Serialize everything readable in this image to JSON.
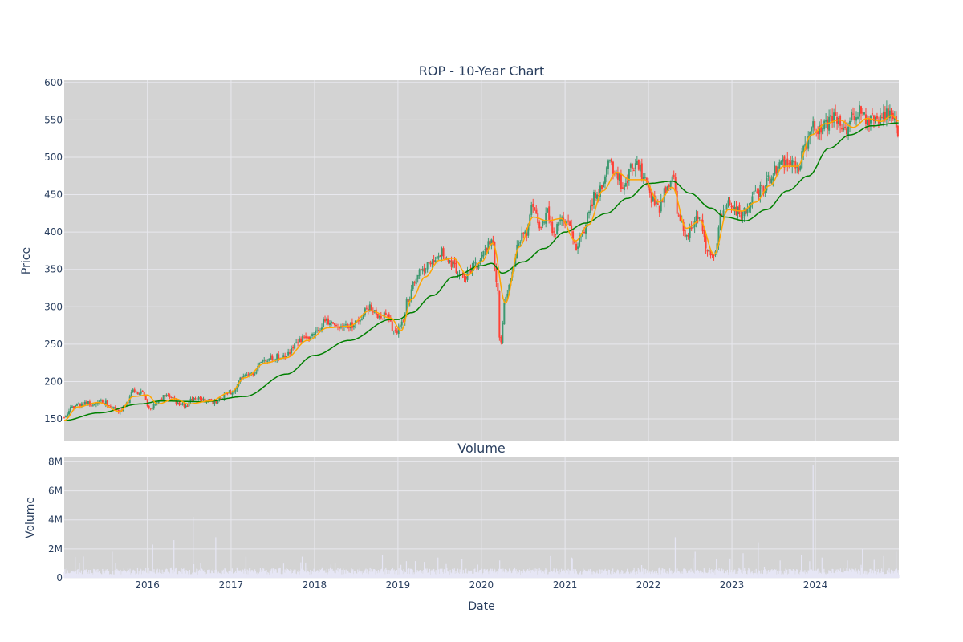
{
  "colors": {
    "plot_background": "#d3d3d3",
    "grid": "#e8e8ee",
    "text": "#2a3f5f",
    "candle_up": "#3d9970",
    "candle_down": "#ff4136",
    "sma_short": "#ffa500",
    "sma_long": "#008000",
    "volume_bar": "#e6e6f5"
  },
  "chart_data": [
    {
      "type": "candlestick",
      "title": "ROP - 10-Year Chart",
      "xlabel": "",
      "ylabel": "Price",
      "ylim": [
        120,
        603
      ],
      "yticks": [
        150,
        200,
        250,
        300,
        350,
        400,
        450,
        500,
        550,
        600
      ],
      "xlim": [
        "2015-01-02",
        "2024-12-31"
      ],
      "xticks": [
        "2016-01-01",
        "2017-01-01",
        "2018-01-01",
        "2019-01-01",
        "2020-01-01",
        "2021-01-01",
        "2022-01-01",
        "2023-01-01",
        "2024-01-01"
      ],
      "grid": true,
      "legend": "none",
      "close_path": [
        [
          "2015-01-02",
          152
        ],
        [
          "2015-02-01",
          165
        ],
        [
          "2015-03-01",
          168
        ],
        [
          "2015-04-01",
          172
        ],
        [
          "2015-05-01",
          170
        ],
        [
          "2015-06-01",
          174
        ],
        [
          "2015-07-01",
          172
        ],
        [
          "2015-08-01",
          165
        ],
        [
          "2015-09-01",
          158
        ],
        [
          "2015-10-01",
          170
        ],
        [
          "2015-11-01",
          188
        ],
        [
          "2015-12-01",
          185
        ],
        [
          "2016-01-15",
          165
        ],
        [
          "2016-02-15",
          172
        ],
        [
          "2016-03-15",
          180
        ],
        [
          "2016-04-15",
          178
        ],
        [
          "2016-05-15",
          170
        ],
        [
          "2016-06-15",
          168
        ],
        [
          "2016-07-15",
          175
        ],
        [
          "2016-08-15",
          178
        ],
        [
          "2016-09-15",
          175
        ],
        [
          "2016-10-15",
          172
        ],
        [
          "2016-11-15",
          178
        ],
        [
          "2016-12-15",
          183
        ],
        [
          "2017-01-15",
          188
        ],
        [
          "2017-02-15",
          205
        ],
        [
          "2017-03-15",
          210
        ],
        [
          "2017-04-15",
          212
        ],
        [
          "2017-05-15",
          225
        ],
        [
          "2017-06-15",
          232
        ],
        [
          "2017-07-15",
          233
        ],
        [
          "2017-08-15",
          232
        ],
        [
          "2017-09-15",
          240
        ],
        [
          "2017-10-15",
          252
        ],
        [
          "2017-11-15",
          258
        ],
        [
          "2017-12-15",
          260
        ],
        [
          "2018-01-15",
          268
        ],
        [
          "2018-02-15",
          280
        ],
        [
          "2018-03-15",
          278
        ],
        [
          "2018-04-15",
          273
        ],
        [
          "2018-05-15",
          272
        ],
        [
          "2018-06-15",
          276
        ],
        [
          "2018-07-15",
          280
        ],
        [
          "2018-08-15",
          300
        ],
        [
          "2018-09-15",
          298
        ],
        [
          "2018-10-15",
          285
        ],
        [
          "2018-11-15",
          290
        ],
        [
          "2018-12-15",
          265
        ],
        [
          "2019-01-15",
          275
        ],
        [
          "2019-02-15",
          310
        ],
        [
          "2019-03-15",
          335
        ],
        [
          "2019-04-15",
          350
        ],
        [
          "2019-05-15",
          355
        ],
        [
          "2019-06-15",
          368
        ],
        [
          "2019-07-15",
          372
        ],
        [
          "2019-08-15",
          360
        ],
        [
          "2019-09-15",
          350
        ],
        [
          "2019-10-15",
          338
        ],
        [
          "2019-11-15",
          350
        ],
        [
          "2019-12-15",
          355
        ],
        [
          "2020-01-15",
          375
        ],
        [
          "2020-02-15",
          390
        ],
        [
          "2020-03-10",
          330
        ],
        [
          "2020-03-23",
          250
        ],
        [
          "2020-04-15",
          310
        ],
        [
          "2020-05-15",
          345
        ],
        [
          "2020-06-15",
          390
        ],
        [
          "2020-07-15",
          400
        ],
        [
          "2020-08-15",
          440
        ],
        [
          "2020-09-15",
          405
        ],
        [
          "2020-10-15",
          425
        ],
        [
          "2020-11-15",
          400
        ],
        [
          "2020-12-15",
          420
        ],
        [
          "2021-01-15",
          410
        ],
        [
          "2021-02-15",
          380
        ],
        [
          "2021-03-15",
          395
        ],
        [
          "2021-04-15",
          430
        ],
        [
          "2021-05-15",
          450
        ],
        [
          "2021-06-15",
          465
        ],
        [
          "2021-07-15",
          490
        ],
        [
          "2021-08-15",
          475
        ],
        [
          "2021-09-15",
          460
        ],
        [
          "2021-10-15",
          485
        ],
        [
          "2021-11-15",
          490
        ],
        [
          "2021-12-15",
          470
        ],
        [
          "2022-01-15",
          445
        ],
        [
          "2022-02-15",
          430
        ],
        [
          "2022-03-15",
          455
        ],
        [
          "2022-04-15",
          475
        ],
        [
          "2022-05-15",
          420
        ],
        [
          "2022-06-15",
          390
        ],
        [
          "2022-07-15",
          410
        ],
        [
          "2022-08-15",
          420
        ],
        [
          "2022-09-15",
          370
        ],
        [
          "2022-10-15",
          368
        ],
        [
          "2022-11-15",
          420
        ],
        [
          "2022-12-15",
          440
        ],
        [
          "2023-01-15",
          430
        ],
        [
          "2023-02-15",
          425
        ],
        [
          "2023-03-15",
          430
        ],
        [
          "2023-04-15",
          450
        ],
        [
          "2023-05-15",
          458
        ],
        [
          "2023-06-15",
          470
        ],
        [
          "2023-07-15",
          485
        ],
        [
          "2023-08-15",
          495
        ],
        [
          "2023-09-15",
          490
        ],
        [
          "2023-10-15",
          485
        ],
        [
          "2023-11-15",
          510
        ],
        [
          "2023-12-15",
          540
        ],
        [
          "2024-01-15",
          540
        ],
        [
          "2024-02-15",
          545
        ],
        [
          "2024-03-15",
          555
        ],
        [
          "2024-04-15",
          550
        ],
        [
          "2024-05-15",
          530
        ],
        [
          "2024-06-15",
          555
        ],
        [
          "2024-07-15",
          560
        ],
        [
          "2024-08-15",
          545
        ],
        [
          "2024-09-15",
          555
        ],
        [
          "2024-10-15",
          550
        ],
        [
          "2024-11-15",
          560
        ],
        [
          "2024-12-10",
          550
        ],
        [
          "2024-12-31",
          522
        ]
      ],
      "series": [
        {
          "kind": "sma_short",
          "values": [
            [
              "2015-01-02",
              148
            ],
            [
              "2015-03-01",
              166
            ],
            [
              "2015-06-01",
              172
            ],
            [
              "2015-09-01",
              160
            ],
            [
              "2015-11-01",
              180
            ],
            [
              "2016-01-01",
              182
            ],
            [
              "2016-02-15",
              170
            ],
            [
              "2016-05-01",
              177
            ],
            [
              "2016-07-01",
              170
            ],
            [
              "2016-10-01",
              174
            ],
            [
              "2017-01-01",
              186
            ],
            [
              "2017-03-01",
              205
            ],
            [
              "2017-06-01",
              225
            ],
            [
              "2017-09-01",
              232
            ],
            [
              "2017-12-01",
              255
            ],
            [
              "2018-03-01",
              272
            ],
            [
              "2018-06-01",
              274
            ],
            [
              "2018-09-01",
              295
            ],
            [
              "2018-12-01",
              285
            ],
            [
              "2019-01-15",
              268
            ],
            [
              "2019-03-01",
              310
            ],
            [
              "2019-05-01",
              340
            ],
            [
              "2019-07-01",
              362
            ],
            [
              "2019-09-01",
              365
            ],
            [
              "2019-11-01",
              342
            ],
            [
              "2020-01-01",
              360
            ],
            [
              "2020-02-20",
              385
            ],
            [
              "2020-04-15",
              305
            ],
            [
              "2020-06-15",
              380
            ],
            [
              "2020-08-15",
              420
            ],
            [
              "2020-10-15",
              415
            ],
            [
              "2020-12-15",
              418
            ],
            [
              "2021-02-15",
              388
            ],
            [
              "2021-04-15",
              410
            ],
            [
              "2021-06-15",
              455
            ],
            [
              "2021-08-15",
              480
            ],
            [
              "2021-10-15",
              470
            ],
            [
              "2021-12-15",
              470
            ],
            [
              "2022-02-15",
              440
            ],
            [
              "2022-04-15",
              460
            ],
            [
              "2022-06-15",
              405
            ],
            [
              "2022-08-15",
              415
            ],
            [
              "2022-10-15",
              370
            ],
            [
              "2022-12-15",
              430
            ],
            [
              "2023-02-15",
              428
            ],
            [
              "2023-04-15",
              440
            ],
            [
              "2023-06-15",
              462
            ],
            [
              "2023-08-15",
              488
            ],
            [
              "2023-10-15",
              488
            ],
            [
              "2023-12-15",
              530
            ],
            [
              "2024-02-15",
              545
            ],
            [
              "2024-04-15",
              550
            ],
            [
              "2024-06-15",
              540
            ],
            [
              "2024-08-15",
              552
            ],
            [
              "2024-10-15",
              548
            ],
            [
              "2024-12-01",
              556
            ],
            [
              "2024-12-31",
              548
            ]
          ]
        },
        {
          "kind": "sma_long",
          "values": [
            [
              "2015-01-02",
              148
            ],
            [
              "2015-06-01",
              158
            ],
            [
              "2015-12-01",
              170
            ],
            [
              "2016-03-01",
              174
            ],
            [
              "2016-09-01",
              173
            ],
            [
              "2017-03-01",
              180
            ],
            [
              "2017-09-01",
              210
            ],
            [
              "2018-01-01",
              235
            ],
            [
              "2018-06-01",
              255
            ],
            [
              "2018-12-01",
              283
            ],
            [
              "2019-01-01",
              283
            ],
            [
              "2019-03-01",
              292
            ],
            [
              "2019-06-01",
              315
            ],
            [
              "2019-09-01",
              340
            ],
            [
              "2020-01-01",
              355
            ],
            [
              "2020-02-15",
              358
            ],
            [
              "2020-04-01",
              345
            ],
            [
              "2020-07-01",
              360
            ],
            [
              "2020-10-01",
              378
            ],
            [
              "2021-01-01",
              400
            ],
            [
              "2021-04-01",
              412
            ],
            [
              "2021-07-01",
              425
            ],
            [
              "2021-10-01",
              445
            ],
            [
              "2022-01-01",
              465
            ],
            [
              "2022-04-15",
              468
            ],
            [
              "2022-07-01",
              452
            ],
            [
              "2022-10-01",
              432
            ],
            [
              "2022-12-01",
              420
            ],
            [
              "2023-03-01",
              415
            ],
            [
              "2023-06-01",
              430
            ],
            [
              "2023-09-01",
              455
            ],
            [
              "2023-12-01",
              475
            ],
            [
              "2024-03-01",
              512
            ],
            [
              "2024-06-01",
              530
            ],
            [
              "2024-09-01",
              542
            ],
            [
              "2024-12-31",
              546
            ]
          ]
        }
      ]
    },
    {
      "type": "bar",
      "title": "Volume",
      "xlabel": "Date",
      "ylabel": "Volume",
      "ylim": [
        0,
        8300000
      ],
      "yticks": [
        0,
        2000000,
        4000000,
        6000000,
        8000000
      ],
      "ytick_labels": [
        "0",
        "2M",
        "4M",
        "6M",
        "8M"
      ],
      "xlim": [
        "2015-01-02",
        "2024-12-31"
      ],
      "xticks": [
        "2016-01-01",
        "2017-01-01",
        "2018-01-01",
        "2019-01-01",
        "2020-01-01",
        "2021-01-01",
        "2022-01-01",
        "2023-01-01",
        "2024-01-01"
      ],
      "xtick_labels": [
        "2016",
        "2017",
        "2018",
        "2019",
        "2020",
        "2021",
        "2022",
        "2023",
        "2024"
      ],
      "baseline": 500000,
      "spikes": [
        [
          "2015-08-01",
          1800000
        ],
        [
          "2016-01-25",
          2300000
        ],
        [
          "2016-04-25",
          2600000
        ],
        [
          "2016-07-20",
          4200000
        ],
        [
          "2016-10-25",
          2800000
        ],
        [
          "2018-10-25",
          1600000
        ],
        [
          "2019-06-25",
          1400000
        ],
        [
          "2020-03-20",
          1200000
        ],
        [
          "2020-10-30",
          1500000
        ],
        [
          "2021-01-30",
          1400000
        ],
        [
          "2022-04-27",
          2800000
        ],
        [
          "2022-07-25",
          1800000
        ],
        [
          "2022-10-25",
          1300000
        ],
        [
          "2023-02-20",
          1700000
        ],
        [
          "2023-04-27",
          2400000
        ],
        [
          "2023-07-30",
          1200000
        ],
        [
          "2023-11-01",
          1600000
        ],
        [
          "2023-12-22",
          7800000
        ],
        [
          "2024-01-29",
          1400000
        ],
        [
          "2024-05-20",
          1200000
        ],
        [
          "2024-07-25",
          2000000
        ],
        [
          "2024-10-25",
          1500000
        ],
        [
          "2024-12-20",
          1800000
        ]
      ]
    }
  ]
}
